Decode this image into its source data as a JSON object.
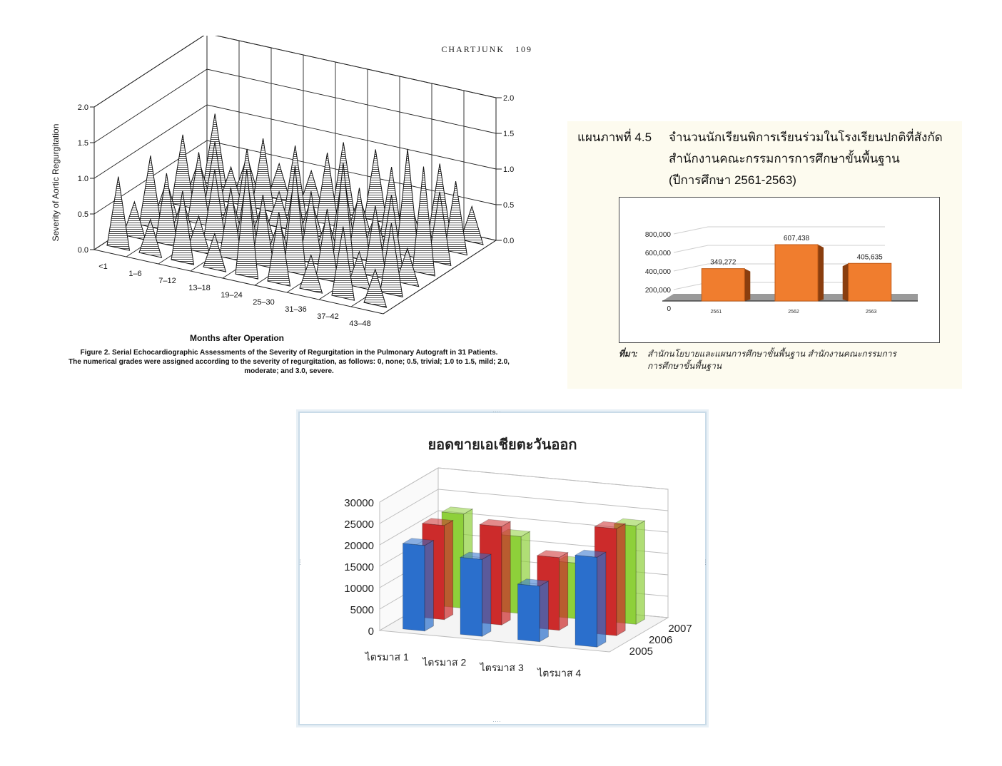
{
  "chart_data": [
    {
      "type": "area",
      "running_head": "CHARTJUNK",
      "page_number": "109",
      "ylabel": "Severity of Aortic Regurgitation",
      "xlabel": "Months after Operation",
      "y_ticks": [
        "0.0",
        "0.5",
        "1.0",
        "1.5",
        "2.0"
      ],
      "ylim": [
        0,
        2.0
      ],
      "categories": [
        "<1",
        "1–6",
        "7–12",
        "13–18",
        "19–24",
        "25–30",
        "31–36",
        "37–42",
        "43–48"
      ],
      "series": [
        {
          "values": [
            1.0,
            0.5,
            1.0,
            0.5,
            1.5,
            1.0,
            0.5,
            1.0,
            0.5
          ]
        },
        {
          "values": [
            0.5,
            1.0,
            0.5,
            1.0,
            1.0,
            1.5,
            1.0,
            0.5,
            1.0
          ]
        },
        {
          "values": [
            1.0,
            0.5,
            1.0,
            1.0,
            0.5,
            1.0,
            1.5,
            1.0,
            0.5
          ]
        },
        {
          "values": [
            0.5,
            1.0,
            0.5,
            0.5,
            1.0,
            0.5,
            1.0,
            1.0,
            1.5
          ]
        },
        {
          "values": [
            1.0,
            1.0,
            1.0,
            0.5,
            0.5,
            1.0,
            0.5,
            1.5,
            1.0
          ]
        },
        {
          "values": [
            0.5,
            0.5,
            1.0,
            1.0,
            1.0,
            0.5,
            1.0,
            0.5,
            1.0
          ]
        },
        {
          "values": [
            1.0,
            0.5,
            0.5,
            0.5,
            1.0,
            1.0,
            0.5,
            1.0,
            0.5
          ]
        }
      ],
      "caption": [
        "Figure 2. Serial Echocardiographic Assessments of the Severity of Regurgitation in the Pulmonary Autograft in 31 Patients.",
        "The numerical grades were assigned according to the severity of regurgitation, as follows: 0, none; 0.5, trivial; 1.0 to 1.5, mild; 2.0,",
        "moderate; and 3.0, severe."
      ],
      "grid": true
    },
    {
      "type": "bar",
      "figure_number": "แผนภาพที่ 4.5",
      "title_lines": [
        "จำนวนนักเรียนพิการเรียนร่วมในโรงเรียนปกติที่สังกัด",
        "สำนักงานคณะกรรมการการศึกษาขั้นพื้นฐาน",
        "(ปีการศึกษา 2561-2563)"
      ],
      "categories": [
        "2561",
        "2562",
        "2563"
      ],
      "values": [
        349272,
        607438,
        405635
      ],
      "value_labels": [
        "349,272",
        "607,438",
        "405,635"
      ],
      "y_ticks": [
        "0",
        "200,000",
        "400,000",
        "600,000",
        "800,000"
      ],
      "ylim": [
        0,
        800000
      ],
      "bar_color": "#f07d2e",
      "source_label": "ที่มา:",
      "source_lines": [
        "สำนักนโยบายและแผนการศึกษาขั้นพื้นฐาน สำนักงานคณะกรรมการ",
        "การศึกษาขั้นพื้นฐาน"
      ],
      "grid": true
    },
    {
      "type": "bar",
      "title": "ยอดขายเอเชียตะวันออก",
      "categories": [
        "ไตรมาส 1",
        "ไตรมาส 2",
        "ไตรมาส 3",
        "ไตรมาส 4"
      ],
      "y_ticks": [
        "0",
        "5000",
        "10000",
        "15000",
        "20000",
        "25000",
        "30000"
      ],
      "ylim": [
        0,
        30000
      ],
      "series": [
        {
          "name": "2005",
          "color": "#2b6fcc",
          "values": [
            20000,
            18000,
            13000,
            21000
          ]
        },
        {
          "name": "2006",
          "color": "#cc2b2b",
          "values": [
            22000,
            23000,
            17000,
            25000
          ]
        },
        {
          "name": "2007",
          "color": "#8ed03a",
          "values": [
            22000,
            18000,
            13000,
            23000
          ]
        }
      ],
      "grid": true
    }
  ]
}
